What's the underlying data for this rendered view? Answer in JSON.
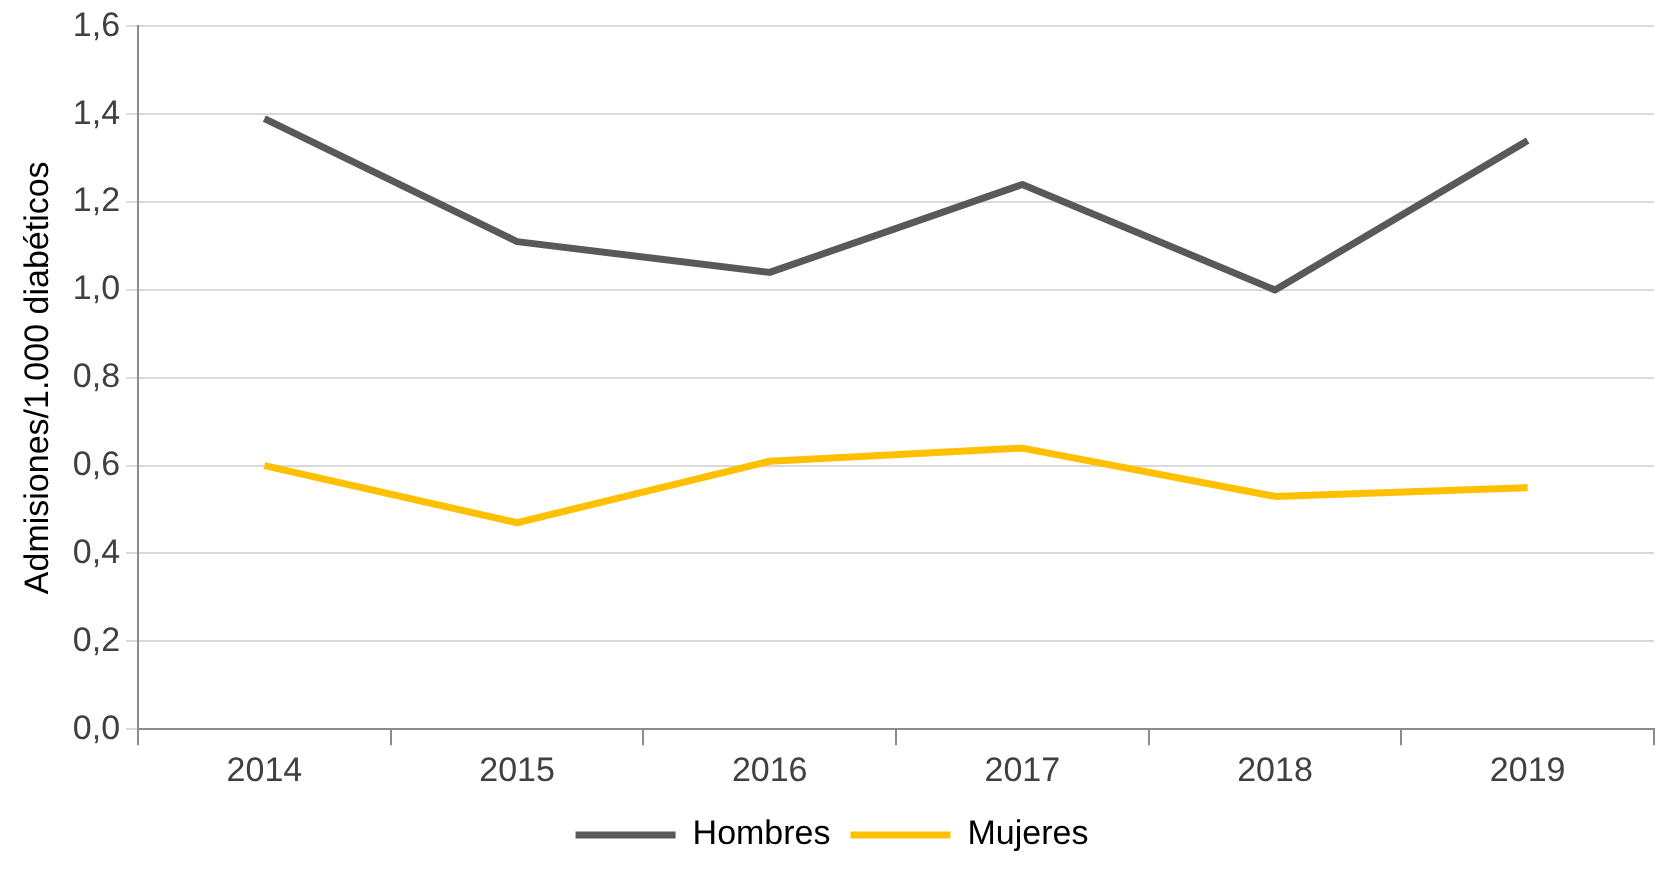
{
  "chart_data": {
    "type": "line",
    "ylabel": "Admisiones/1.000 diabéticos",
    "categories": [
      "2014",
      "2015",
      "2016",
      "2017",
      "2018",
      "2019"
    ],
    "series": [
      {
        "name": "Hombres",
        "color": "#595959",
        "values": [
          1.39,
          1.11,
          1.04,
          1.24,
          1.0,
          1.34
        ]
      },
      {
        "name": "Mujeres",
        "color": "#ffc000",
        "values": [
          0.6,
          0.47,
          0.61,
          0.64,
          0.53,
          0.55
        ]
      }
    ],
    "ylim": [
      0,
      1.6
    ],
    "yticks": [
      {
        "value": 0,
        "label": "0,0"
      },
      {
        "value": 0.2,
        "label": "0,2"
      },
      {
        "value": 0.4,
        "label": "0,4"
      },
      {
        "value": 0.6,
        "label": "0,6"
      },
      {
        "value": 0.8,
        "label": "0,8"
      },
      {
        "value": 1.0,
        "label": "1,0"
      },
      {
        "value": 1.2,
        "label": "1,2"
      },
      {
        "value": 1.4,
        "label": "1,4"
      },
      {
        "value": 1.6,
        "label": "1,6"
      }
    ],
    "grid": "y",
    "legend": "bottom",
    "marker": "none",
    "line_style": "solid"
  }
}
